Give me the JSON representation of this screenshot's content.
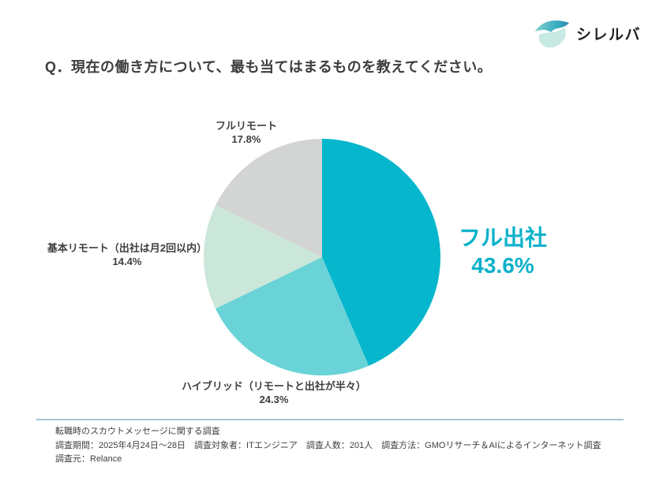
{
  "logo": {
    "text": "シレルバ"
  },
  "title": "Q．現在の働き方について、最も当てはまるものを教えてください。",
  "chart_data": {
    "type": "pie",
    "title": "Q．現在の働き方について、最も当てはまるものを教えてください。",
    "start_angle_deg": 0,
    "direction": "clockwise",
    "legend_position": "callout-labels",
    "slices": [
      {
        "label": "フル出社",
        "value": 43.6,
        "display": "43.6%",
        "color": "#06b6cd"
      },
      {
        "label": "ハイブリッド（リモートと出社が半々）",
        "value": 24.3,
        "display": "24.3%",
        "color": "#6ad3d7"
      },
      {
        "label": "基本リモート（出社は月2回以内）",
        "value": 14.4,
        "display": "14.4%",
        "color": "#cbe7da"
      },
      {
        "label": "フルリモート",
        "value": 17.8,
        "display": "17.8%",
        "color": "#d2d5d3"
      }
    ]
  },
  "footer": {
    "line1": "転職時のスカウトメッセージに関する調査",
    "line2": "調査期間：2025年4月24日〜28日　調査対象者：ITエンジニア　調査人数：201人　調査方法：GMOリサーチ＆AIによるインターネット調査",
    "line3": "調査元：Relance"
  },
  "colors": {
    "accent_teal": "#0cb2ca",
    "divider": "#a6c5d4",
    "text_dark": "#3d3d3d"
  }
}
